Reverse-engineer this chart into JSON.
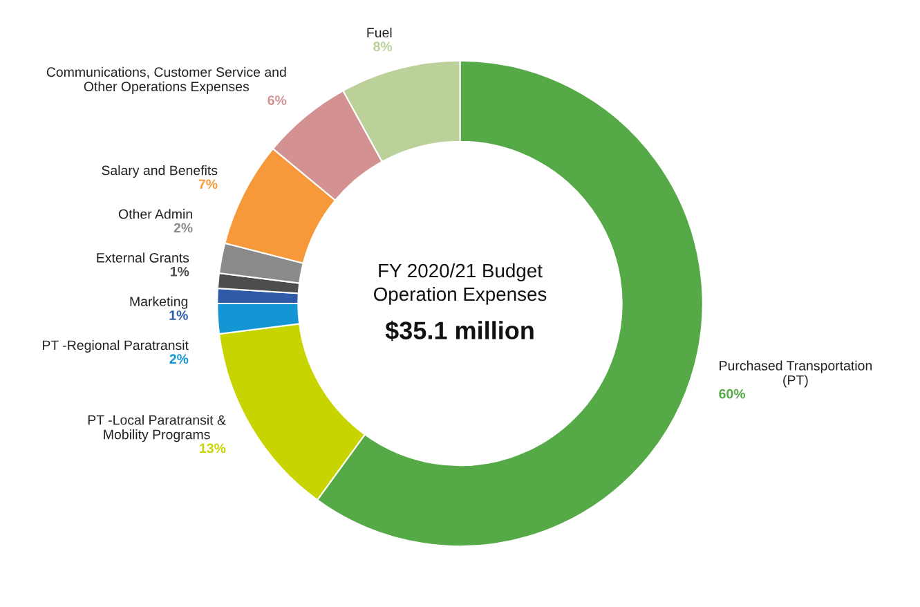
{
  "chart_data": {
    "type": "donut",
    "title": "FY 2020/21 Budget\nOperation Expenses",
    "subtitle": "$35.1 million",
    "categories": [
      "Purchased Transportation\n(PT)",
      "PT -Local Paratransit &\nMobility Programs",
      "PT -Regional Paratransit",
      "Marketing",
      "External Grants",
      "Other Admin",
      "Salary and Benefits",
      "Communications, Customer Service and\nOther Operations Expenses",
      "Fuel"
    ],
    "values": [
      60,
      13,
      2,
      1,
      1,
      2,
      7,
      6,
      8
    ],
    "colors": [
      "#55a947",
      "#c8d400",
      "#1496d4",
      "#2e5aa8",
      "#4d4d4d",
      "#8a8a8a",
      "#f7993b",
      "#d39191",
      "#bcd09a"
    ],
    "value_labels": [
      "60%",
      "13%",
      "2%",
      "1%",
      "1%",
      "2%",
      "7%",
      "6%",
      "8%"
    ],
    "legend": false
  }
}
